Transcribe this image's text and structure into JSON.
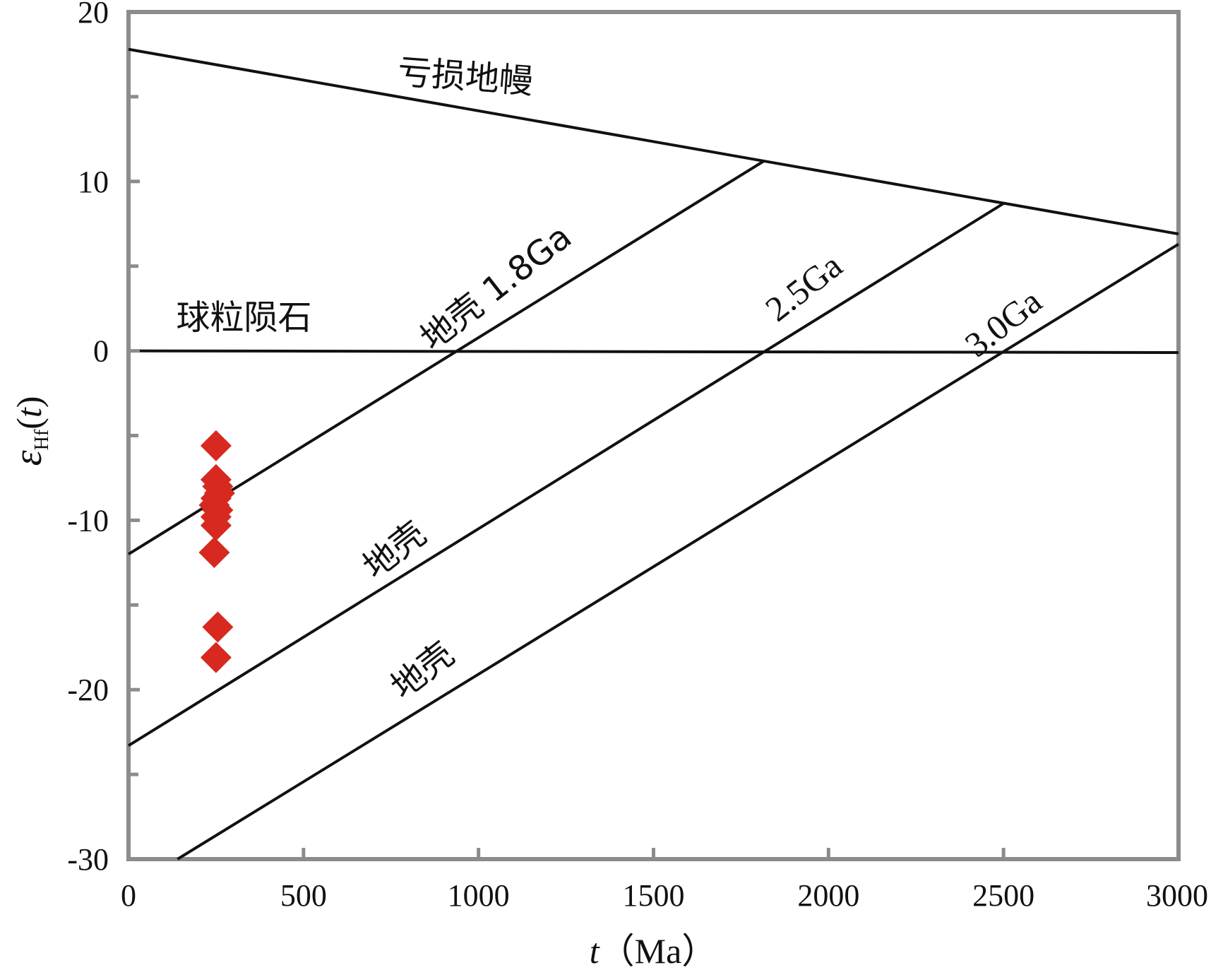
{
  "chart_data": {
    "type": "scatter",
    "xlabel_italic": "t",
    "xlabel_unit": "（Ma）",
    "ylabel_symbol": "ε",
    "ylabel_sub": "Hf",
    "ylabel_paren": "(",
    "ylabel_t": "t",
    "ylabel_paren_close": ")",
    "xlim": [
      0,
      3000
    ],
    "ylim": [
      -30,
      20
    ],
    "x_ticks": [
      0,
      500,
      1000,
      1500,
      2000,
      2500,
      3000
    ],
    "x_tick_labels": [
      "0",
      "500",
      "1000",
      "1500",
      "2000",
      "2500",
      "3000"
    ],
    "y_ticks": [
      20,
      10,
      0,
      -10,
      -20,
      -30
    ],
    "y_tick_labels": [
      "20",
      "10",
      "0",
      "-10",
      "-20",
      "-30"
    ],
    "y_minor_ticks": [
      15,
      5,
      -5,
      -15,
      -25
    ],
    "lines": [
      {
        "id": "depleted-mantle",
        "x": [
          0,
          3000
        ],
        "y": [
          17.8,
          6.9
        ]
      },
      {
        "id": "chondrite",
        "x": [
          0,
          3000
        ],
        "y": [
          0,
          -0.1
        ]
      },
      {
        "id": "crust-1.8",
        "x": [
          0,
          1815
        ],
        "y": [
          -12.0,
          11.2
        ]
      },
      {
        "id": "crust-2.5",
        "x": [
          0,
          2500
        ],
        "y": [
          -23.3,
          8.7
        ]
      },
      {
        "id": "crust-3.0",
        "x": [
          140,
          3000
        ],
        "y": [
          -30,
          6.3
        ]
      }
    ],
    "labels": [
      {
        "id": "depleted-mantle-label",
        "text": "亏损地幔",
        "x": 960,
        "y": 15.5,
        "angle": 4.3
      },
      {
        "id": "chondrite-label",
        "text": "球粒陨石",
        "x": 330,
        "y": 1.3,
        "angle": 0
      },
      {
        "id": "crust-1.8-label",
        "text": "地壳 1.8Ga",
        "x": 1070,
        "y": 3.2,
        "angle": -38
      },
      {
        "id": "crust-2.5-label-a",
        "text": "2.5Ga",
        "x": 1950,
        "y": 3.2,
        "angle": -38
      },
      {
        "id": "crust-2.5-label-b",
        "text": "地壳",
        "x": 780,
        "y": -12.3,
        "angle": -38
      },
      {
        "id": "crust-3.0-label-a",
        "text": "3.0Ga",
        "x": 2520,
        "y": 1.1,
        "angle": -38
      },
      {
        "id": "crust-3.0-label-b",
        "text": "地壳",
        "x": 860,
        "y": -19.4,
        "angle": -38
      }
    ],
    "points": {
      "marker": "diamond",
      "color": "#d7291f",
      "data": [
        {
          "x": 250,
          "y": -5.6
        },
        {
          "x": 250,
          "y": -7.6
        },
        {
          "x": 255,
          "y": -8.0
        },
        {
          "x": 260,
          "y": -8.4
        },
        {
          "x": 250,
          "y": -8.7
        },
        {
          "x": 245,
          "y": -9.1
        },
        {
          "x": 255,
          "y": -9.4
        },
        {
          "x": 250,
          "y": -9.8
        },
        {
          "x": 250,
          "y": -10.3
        },
        {
          "x": 245,
          "y": -11.9
        },
        {
          "x": 255,
          "y": -16.3
        },
        {
          "x": 250,
          "y": -18.1
        }
      ]
    },
    "grid": false,
    "legend": "none"
  },
  "colors": {
    "axis": "#8c8c8c",
    "line": "#111111",
    "marker": "#d7291f"
  }
}
